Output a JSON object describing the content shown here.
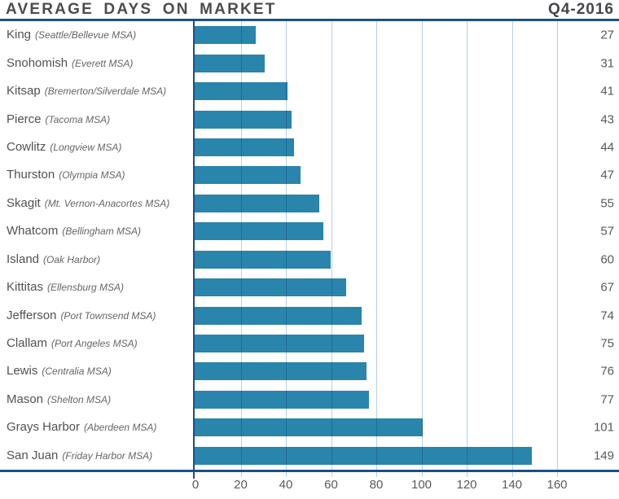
{
  "header": {
    "title": "AVERAGE DAYS ON MARKET",
    "period": "Q4-2016"
  },
  "colors": {
    "bar": "#2a85ac",
    "gridline": "#b9cfe3",
    "axis": "#1b4e8d"
  },
  "chart_data": {
    "type": "bar",
    "orientation": "horizontal",
    "title": "AVERAGE DAYS ON MARKET",
    "subtitle": "Q4-2016",
    "xlabel": "",
    "ylabel": "",
    "xlim": [
      0,
      160
    ],
    "x_ticks": [
      0,
      20,
      40,
      60,
      80,
      100,
      120,
      140,
      160
    ],
    "grid": true,
    "legend": false,
    "categories": [
      "King (Seattle/Bellevue MSA)",
      "Snohomish (Everett MSA)",
      "Kitsap (Bremerton/Silverdale MSA)",
      "Pierce (Tacoma MSA)",
      "Cowlitz (Longview MSA)",
      "Thurston (Olympia MSA)",
      "Skagit (Mt. Vernon-Anacortes MSA)",
      "Whatcom (Bellingham MSA)",
      "Island (Oak Harbor)",
      "Kittitas (Ellensburg MSA)",
      "Jefferson (Port Townsend MSA)",
      "Clallam (Port Angeles MSA)",
      "Lewis (Centralia MSA)",
      "Mason (Shelton MSA)",
      "Grays Harbor (Aberdeen MSA)",
      "San Juan (Friday Harbor MSA)"
    ],
    "values": [
      27,
      31,
      41,
      43,
      44,
      47,
      55,
      57,
      60,
      67,
      74,
      75,
      76,
      77,
      101,
      149
    ],
    "rows": [
      {
        "county": "King",
        "msa": "(Seattle/Bellevue MSA)",
        "value": 27
      },
      {
        "county": "Snohomish",
        "msa": "(Everett MSA)",
        "value": 31
      },
      {
        "county": "Kitsap",
        "msa": "(Bremerton/Silverdale MSA)",
        "value": 41
      },
      {
        "county": "Pierce",
        "msa": "(Tacoma MSA)",
        "value": 43
      },
      {
        "county": "Cowlitz",
        "msa": "(Longview MSA)",
        "value": 44
      },
      {
        "county": "Thurston",
        "msa": "(Olympia MSA)",
        "value": 47
      },
      {
        "county": "Skagit",
        "msa": "(Mt. Vernon-Anacortes MSA)",
        "value": 55
      },
      {
        "county": "Whatcom",
        "msa": "(Bellingham MSA)",
        "value": 57
      },
      {
        "county": "Island",
        "msa": "(Oak Harbor)",
        "value": 60
      },
      {
        "county": "Kittitas",
        "msa": "(Ellensburg MSA)",
        "value": 67
      },
      {
        "county": "Jefferson",
        "msa": "(Port Townsend MSA)",
        "value": 74
      },
      {
        "county": "Clallam",
        "msa": "(Port Angeles MSA)",
        "value": 75
      },
      {
        "county": "Lewis",
        "msa": "(Centralia MSA)",
        "value": 76
      },
      {
        "county": "Mason",
        "msa": "(Shelton MSA)",
        "value": 77
      },
      {
        "county": "Grays Harbor",
        "msa": "(Aberdeen MSA)",
        "value": 101
      },
      {
        "county": "San Juan",
        "msa": "(Friday Harbor MSA)",
        "value": 149
      }
    ]
  }
}
